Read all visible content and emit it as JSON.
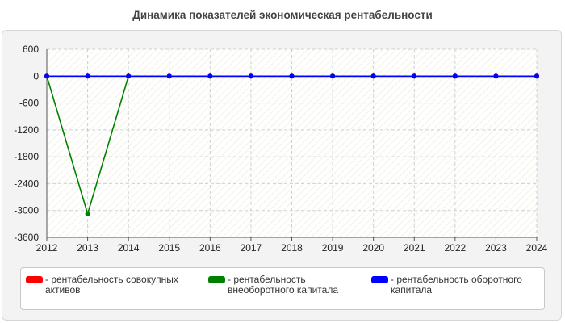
{
  "chart_data": {
    "type": "line",
    "title": "Динамика показателей экономическая рентабельности",
    "x": [
      "2012",
      "2013",
      "2014",
      "2015",
      "2016",
      "2017",
      "2018",
      "2019",
      "2020",
      "2021",
      "2022",
      "2023",
      "2024"
    ],
    "y_ticks": [
      "600",
      "0",
      "-600",
      "-1200",
      "-1800",
      "-2400",
      "-3000",
      "-3600"
    ],
    "ylim": [
      -3600,
      600
    ],
    "grid": true,
    "legend_position": "bottom",
    "series": [
      {
        "name": "- рентабельность совокупных активов",
        "color": "#ff0000",
        "values": [
          0,
          0,
          0,
          0,
          0,
          0,
          0,
          0,
          0,
          0,
          0,
          0,
          0
        ]
      },
      {
        "name": "- рентабельность внеоборотного капитала",
        "color": "#008000",
        "values": [
          0,
          -3075,
          0,
          0,
          0,
          0,
          0,
          0,
          0,
          0,
          0,
          0,
          0
        ]
      },
      {
        "name": "- рентабельность оборотного капитала",
        "color": "#0000ff",
        "values": [
          0,
          0,
          0,
          0,
          0,
          0,
          0,
          0,
          0,
          0,
          0,
          0,
          0
        ]
      }
    ]
  }
}
